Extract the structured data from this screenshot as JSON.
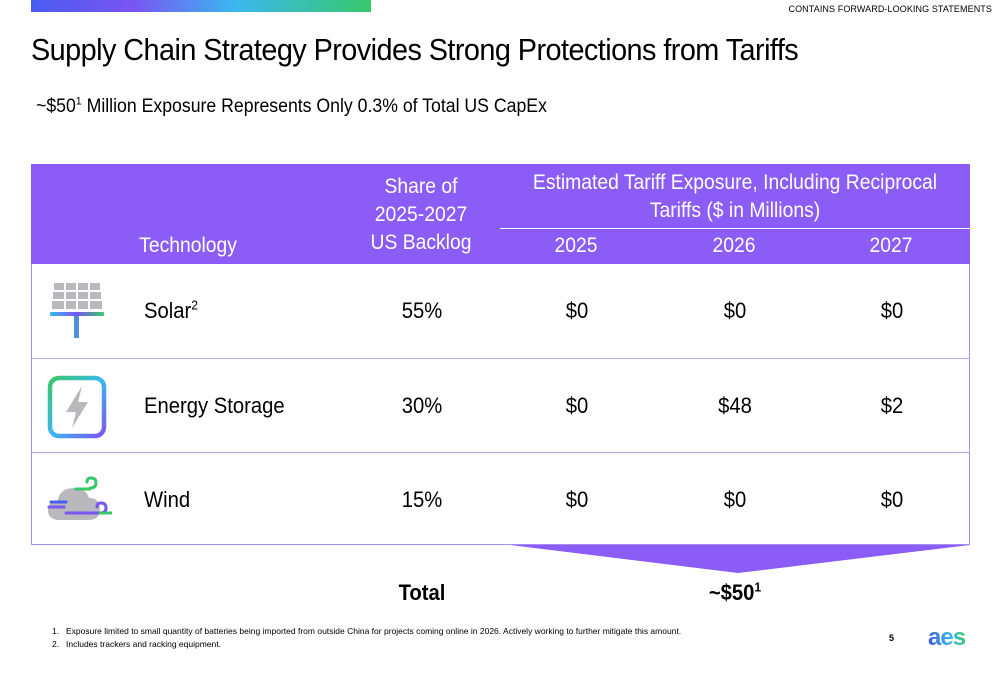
{
  "disclaimer": "CONTAINS FORWARD-LOOKING STATEMENTS",
  "title": "Supply Chain Strategy Provides Strong Protections from Tariffs",
  "subtitle": {
    "prefix": "~$50",
    "sup": "1",
    "suffix": " Million Exposure Represents Only 0.3% of Total US CapEx"
  },
  "table": {
    "headers": {
      "technology": "Technology",
      "share": "Share of 2025-2027 US Backlog",
      "estimated": "Estimated Tariff Exposure, Including Reciprocal Tariffs ($ in Millions)",
      "years": [
        "2025",
        "2026",
        "2027"
      ]
    },
    "rows": [
      {
        "icon": "solar-panel-icon",
        "technology": "Solar",
        "sup": "2",
        "share": "55%",
        "values": [
          "$0",
          "$0",
          "$0"
        ]
      },
      {
        "icon": "energy-storage-icon",
        "technology": "Energy Storage",
        "sup": "",
        "share": "30%",
        "values": [
          "$0",
          "$48",
          "$2"
        ]
      },
      {
        "icon": "wind-cloud-icon",
        "technology": "Wind",
        "sup": "",
        "share": "15%",
        "values": [
          "$0",
          "$0",
          "$0"
        ]
      }
    ],
    "total_label": "Total",
    "total_value": "~$50",
    "total_sup": "1"
  },
  "footnotes": [
    {
      "num": "1.",
      "text": "Exposure limited to small quantity of batteries being imported from outside China for projects coming online in 2026.  Actively working to further mitigate this amount."
    },
    {
      "num": "2.",
      "text": "Includes trackers and racking equipment."
    }
  ],
  "page_number": "5",
  "logo": {
    "text": "aes",
    "color": "#3b5bd6"
  },
  "colors": {
    "header": "#8b5cf6",
    "accent_green": "#38c86a",
    "accent_blue": "#4a5cf0"
  }
}
